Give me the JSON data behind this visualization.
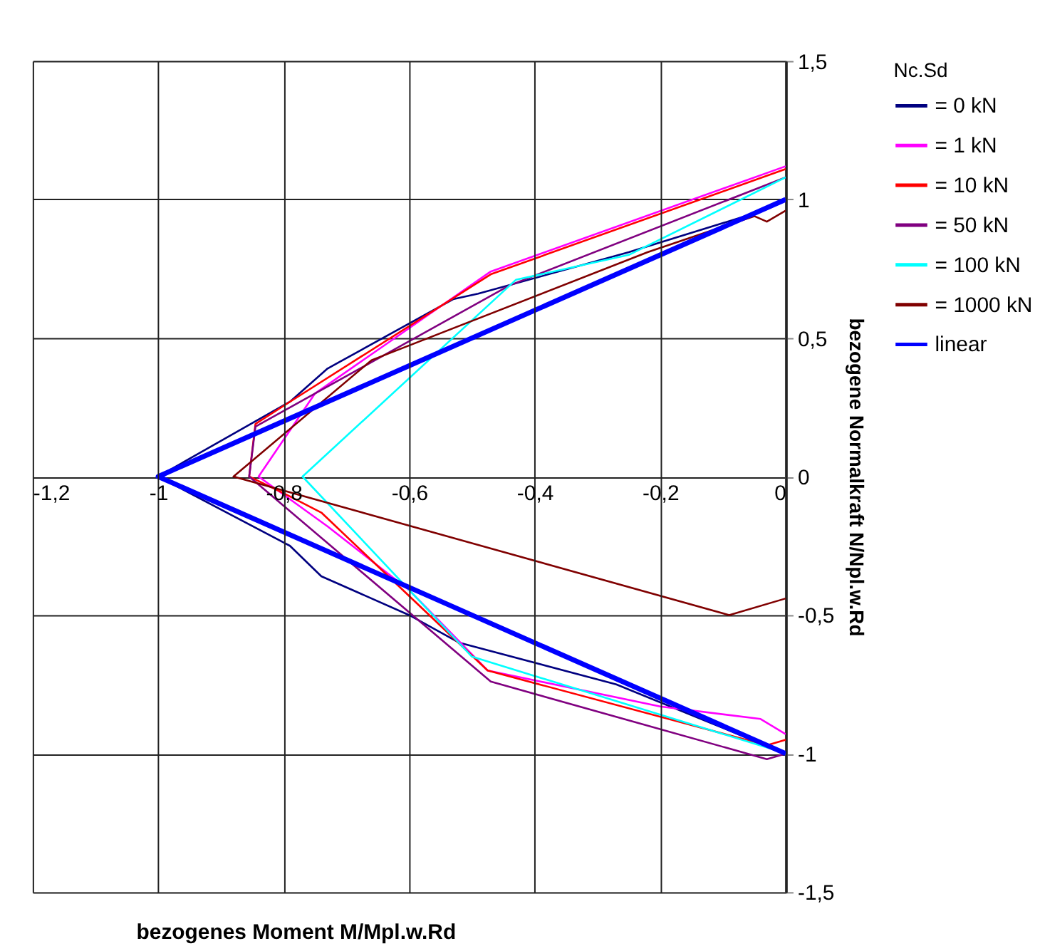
{
  "chart_data": {
    "type": "line",
    "xlabel": "bezogenes Moment M/Mpl.w.Rd",
    "ylabel": "bezogene Normalkraft N/Npl.w.Rd",
    "legend_title": "Nc.Sd",
    "xlim": [
      -1.2,
      0
    ],
    "ylim": [
      -1.5,
      1.5
    ],
    "xticks": [
      {
        "value": -1.2,
        "label": "-1,2"
      },
      {
        "value": -1,
        "label": "-1"
      },
      {
        "value": -0.8,
        "label": "-0,8"
      },
      {
        "value": -0.6,
        "label": "-0,6"
      },
      {
        "value": -0.4,
        "label": "-0,4"
      },
      {
        "value": -0.2,
        "label": "-0,2"
      },
      {
        "value": 0,
        "label": "0"
      }
    ],
    "yticks": [
      {
        "value": -1.5,
        "label": "-1,5"
      },
      {
        "value": -1,
        "label": "-1"
      },
      {
        "value": -0.5,
        "label": "-0,5"
      },
      {
        "value": 0,
        "label": "0"
      },
      {
        "value": 0.5,
        "label": "0,5"
      },
      {
        "value": 1,
        "label": "1"
      },
      {
        "value": 1.5,
        "label": "1,5"
      }
    ],
    "grid": true,
    "legend": "right",
    "marker": "none",
    "line_style": "solid",
    "series": [
      {
        "name": "= 0 kN",
        "color": "#000080",
        "x": [
          0,
          -0.27,
          -0.52,
          -0.6,
          -0.74,
          -0.79,
          -1,
          -0.79,
          -0.73,
          -0.53,
          -0.49,
          -0.25,
          -0.05,
          0
        ],
        "values": [
          -1,
          -0.75,
          -0.6,
          -0.5,
          -0.36,
          -0.25,
          0,
          0.27,
          0.39,
          0.64,
          0.66,
          0.81,
          0.95,
          1
        ]
      },
      {
        "name": "= 1 kN",
        "color": "#ff00ff",
        "x": [
          0,
          -0.04,
          -0.2,
          -0.475,
          -0.6,
          -0.73,
          -0.84,
          -0.75,
          -0.47,
          0
        ],
        "values": [
          -0.93,
          -0.875,
          -0.83,
          -0.7,
          -0.41,
          -0.18,
          0,
          0.3,
          0.74,
          1.12
        ]
      },
      {
        "name": "= 10 kN",
        "color": "#ff0000",
        "x": [
          0,
          -0.03,
          -0.475,
          -0.74,
          -0.8,
          -0.855,
          -0.845,
          -0.79,
          -0.47,
          0
        ],
        "values": [
          -0.95,
          -0.97,
          -0.7,
          -0.13,
          -0.06,
          0,
          0.19,
          0.27,
          0.73,
          1.11
        ]
      },
      {
        "name": "= 50 kN",
        "color": "#800080",
        "x": [
          0,
          -0.03,
          -0.47,
          -0.855,
          -0.845,
          -0.44,
          0
        ],
        "values": [
          -1,
          -1.02,
          -0.74,
          0,
          0.18,
          0.69,
          1.08
        ]
      },
      {
        "name": "= 100 kN",
        "color": "#00ffff",
        "x": [
          0,
          -0.02,
          -0.5,
          -0.77,
          -0.43,
          -0.25,
          0
        ],
        "values": [
          -1,
          -0.985,
          -0.65,
          0,
          0.71,
          0.8,
          1.08
        ]
      },
      {
        "name": "= 1000 kN",
        "color": "#800000",
        "x": [
          0,
          -0.09,
          -0.88,
          -0.66,
          -0.22,
          -0.05,
          -0.03,
          0
        ],
        "values": [
          -0.44,
          -0.5,
          0,
          0.42,
          0.81,
          0.94,
          0.92,
          0.96
        ]
      },
      {
        "name": "linear",
        "color": "#0000ff",
        "x": [
          0,
          -1,
          0
        ],
        "values": [
          -1,
          0,
          1
        ]
      }
    ]
  }
}
